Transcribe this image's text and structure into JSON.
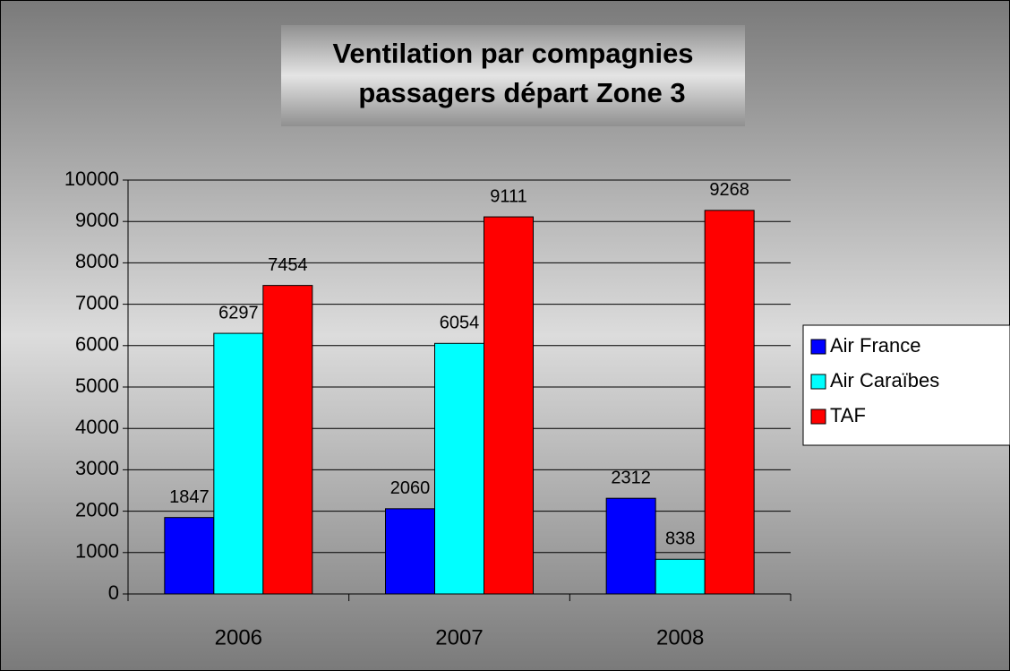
{
  "chart_data": {
    "type": "bar",
    "title": [
      "Ventilation par compagnies",
      "passagers départ Zone 3"
    ],
    "categories": [
      "2006",
      "2007",
      "2008"
    ],
    "series": [
      {
        "name": "Air France",
        "color": "#0000ff",
        "values": [
          1847,
          2060,
          2312
        ]
      },
      {
        "name": "Air Caraïbes",
        "color": "#00ffff",
        "values": [
          6297,
          6054,
          838
        ]
      },
      {
        "name": "TAF",
        "color": "#ff0000",
        "values": [
          7454,
          9111,
          9268
        ]
      }
    ],
    "ylim": [
      0,
      10000
    ],
    "yticks": [
      0,
      1000,
      2000,
      3000,
      4000,
      5000,
      6000,
      7000,
      8000,
      9000,
      10000
    ],
    "grid": true,
    "legend": "right"
  }
}
